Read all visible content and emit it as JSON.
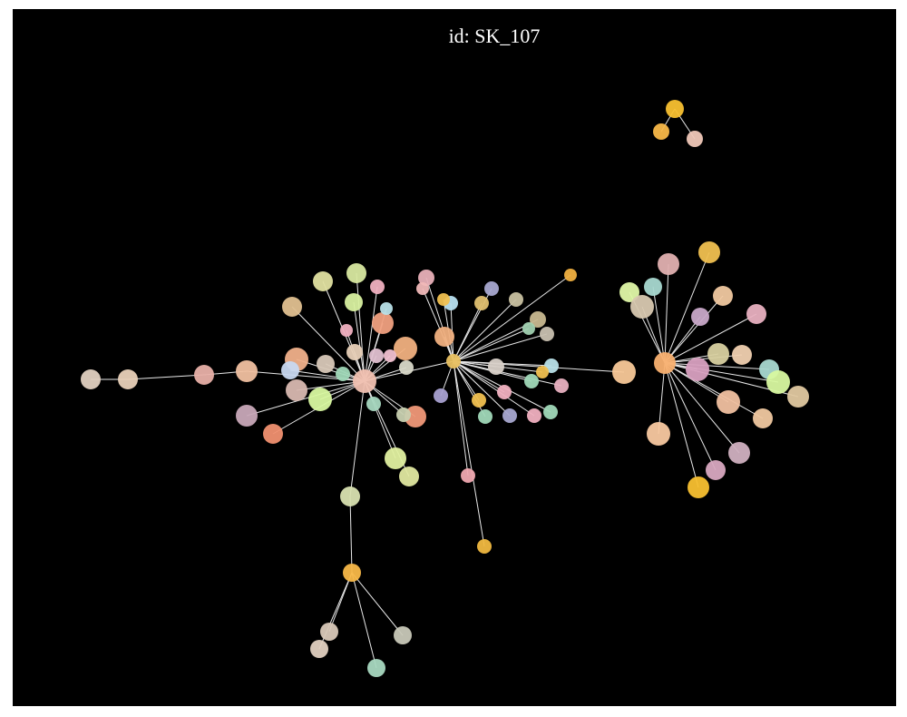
{
  "title": "id: SK_107"
}
